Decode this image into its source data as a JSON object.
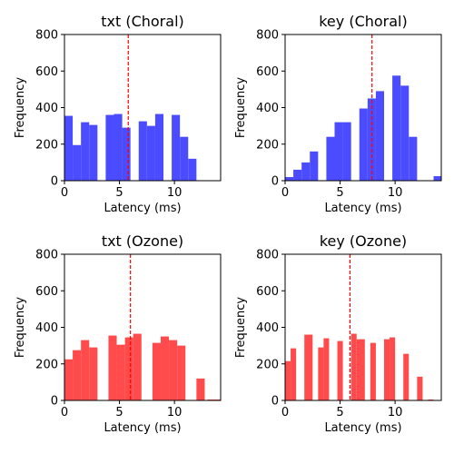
{
  "chart_data": [
    {
      "type": "bar",
      "title": "txt (Choral)",
      "xlabel": "Latency (ms)",
      "ylabel": "Frequency",
      "xlim": [
        0,
        14.2
      ],
      "ylim": [
        0,
        800
      ],
      "xticks": [
        0,
        5,
        10
      ],
      "yticks": [
        0,
        200,
        400,
        600,
        800
      ],
      "color": "#4b4bff",
      "mean_line": 5.8,
      "bins": [
        {
          "x0": 0.0,
          "x1": 0.75,
          "value": 355
        },
        {
          "x0": 0.75,
          "x1": 1.5,
          "value": 195
        },
        {
          "x0": 1.5,
          "x1": 2.25,
          "value": 320
        },
        {
          "x0": 2.25,
          "x1": 3.0,
          "value": 305
        },
        {
          "x0": 3.75,
          "x1": 4.5,
          "value": 360
        },
        {
          "x0": 4.5,
          "x1": 5.25,
          "value": 365
        },
        {
          "x0": 5.25,
          "x1": 6.0,
          "value": 290
        },
        {
          "x0": 6.75,
          "x1": 7.5,
          "value": 325
        },
        {
          "x0": 7.5,
          "x1": 8.25,
          "value": 300
        },
        {
          "x0": 8.25,
          "x1": 9.0,
          "value": 365
        },
        {
          "x0": 9.75,
          "x1": 10.5,
          "value": 360
        },
        {
          "x0": 10.5,
          "x1": 11.25,
          "value": 240
        },
        {
          "x0": 11.25,
          "x1": 12.0,
          "value": 120
        }
      ]
    },
    {
      "type": "bar",
      "title": "key (Choral)",
      "xlabel": "Latency (ms)",
      "ylabel": "Frequency",
      "xlim": [
        0,
        14.2
      ],
      "ylim": [
        0,
        800
      ],
      "xticks": [
        0,
        5,
        10
      ],
      "yticks": [
        0,
        200,
        400,
        600,
        800
      ],
      "color": "#4b4bff",
      "mean_line": 7.9,
      "bins": [
        {
          "x0": 0.0,
          "x1": 0.75,
          "value": 20
        },
        {
          "x0": 0.75,
          "x1": 1.5,
          "value": 60
        },
        {
          "x0": 1.5,
          "x1": 2.25,
          "value": 100
        },
        {
          "x0": 2.25,
          "x1": 3.0,
          "value": 160
        },
        {
          "x0": 3.75,
          "x1": 4.5,
          "value": 240
        },
        {
          "x0": 4.5,
          "x1": 5.25,
          "value": 320
        },
        {
          "x0": 5.25,
          "x1": 6.0,
          "value": 320
        },
        {
          "x0": 6.75,
          "x1": 7.5,
          "value": 395
        },
        {
          "x0": 7.5,
          "x1": 8.25,
          "value": 450
        },
        {
          "x0": 8.25,
          "x1": 9.0,
          "value": 490
        },
        {
          "x0": 9.75,
          "x1": 10.5,
          "value": 575
        },
        {
          "x0": 10.5,
          "x1": 11.25,
          "value": 520
        },
        {
          "x0": 11.25,
          "x1": 12.0,
          "value": 240
        },
        {
          "x0": 13.5,
          "x1": 14.2,
          "value": 25
        }
      ]
    },
    {
      "type": "bar",
      "title": "txt (Ozone)",
      "xlabel": "Latency (ms)",
      "ylabel": "Frequency",
      "xlim": [
        0,
        14.2
      ],
      "ylim": [
        0,
        800
      ],
      "xticks": [
        0,
        5,
        10
      ],
      "yticks": [
        0,
        200,
        400,
        600,
        800
      ],
      "color": "#ff4b4b",
      "mean_line": 6.0,
      "bins": [
        {
          "x0": 0.0,
          "x1": 0.75,
          "value": 225
        },
        {
          "x0": 0.75,
          "x1": 1.5,
          "value": 275
        },
        {
          "x0": 1.5,
          "x1": 2.25,
          "value": 330
        },
        {
          "x0": 2.25,
          "x1": 3.0,
          "value": 290
        },
        {
          "x0": 4.0,
          "x1": 4.75,
          "value": 355
        },
        {
          "x0": 4.75,
          "x1": 5.5,
          "value": 305
        },
        {
          "x0": 5.5,
          "x1": 6.25,
          "value": 345
        },
        {
          "x0": 6.25,
          "x1": 7.0,
          "value": 365
        },
        {
          "x0": 8.0,
          "x1": 8.75,
          "value": 315
        },
        {
          "x0": 8.75,
          "x1": 9.5,
          "value": 350
        },
        {
          "x0": 9.5,
          "x1": 10.25,
          "value": 330
        },
        {
          "x0": 10.25,
          "x1": 11.0,
          "value": 300
        },
        {
          "x0": 12.0,
          "x1": 12.75,
          "value": 120
        },
        {
          "x0": 13.0,
          "x1": 14.2,
          "value": 5
        }
      ]
    },
    {
      "type": "bar",
      "title": "key (Ozone)",
      "xlabel": "Latency (ms)",
      "ylabel": "Frequency",
      "xlim": [
        0,
        14.2
      ],
      "ylim": [
        0,
        800
      ],
      "xticks": [
        0,
        5,
        10
      ],
      "yticks": [
        0,
        200,
        400,
        600,
        800
      ],
      "color": "#ff4b4b",
      "mean_line": 5.9,
      "bins": [
        {
          "x0": 0.0,
          "x1": 0.5,
          "value": 215
        },
        {
          "x0": 0.5,
          "x1": 1.0,
          "value": 285
        },
        {
          "x0": 1.75,
          "x1": 2.5,
          "value": 360
        },
        {
          "x0": 3.0,
          "x1": 3.5,
          "value": 290
        },
        {
          "x0": 3.5,
          "x1": 4.0,
          "value": 340
        },
        {
          "x0": 4.75,
          "x1": 5.25,
          "value": 325
        },
        {
          "x0": 6.0,
          "x1": 6.5,
          "value": 365
        },
        {
          "x0": 6.5,
          "x1": 7.25,
          "value": 335
        },
        {
          "x0": 7.75,
          "x1": 8.25,
          "value": 315
        },
        {
          "x0": 9.0,
          "x1": 9.5,
          "value": 335
        },
        {
          "x0": 9.5,
          "x1": 10.0,
          "value": 345
        },
        {
          "x0": 10.75,
          "x1": 11.25,
          "value": 255
        },
        {
          "x0": 12.0,
          "x1": 12.5,
          "value": 130
        },
        {
          "x0": 13.0,
          "x1": 13.5,
          "value": 5
        }
      ]
    }
  ]
}
